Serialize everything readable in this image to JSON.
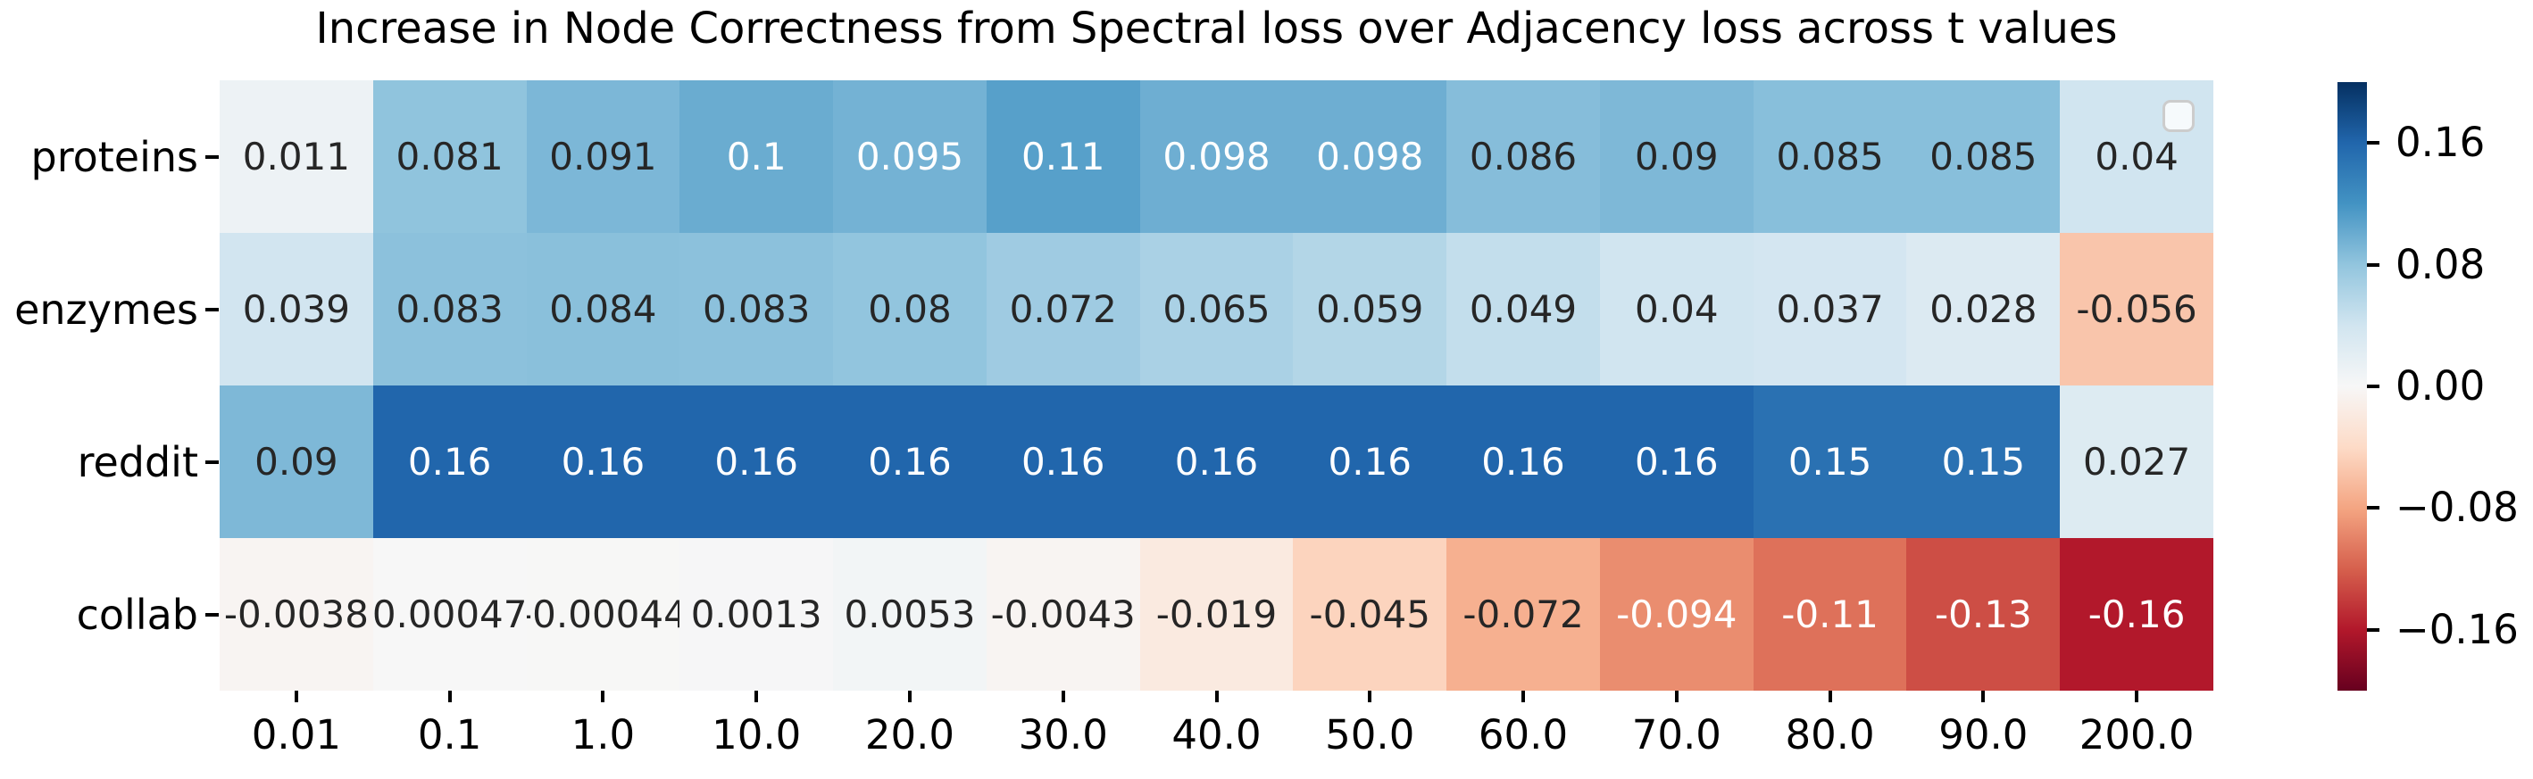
{
  "chart_data": {
    "type": "heatmap",
    "title": "Increase in Node Correctness from Spectral loss over Adjacency loss across t values",
    "rows": [
      "proteins",
      "enzymes",
      "reddit",
      "collab"
    ],
    "columns": [
      "0.01",
      "0.1",
      "1.0",
      "10.0",
      "20.0",
      "30.0",
      "40.0",
      "50.0",
      "60.0",
      "70.0",
      "80.0",
      "90.0",
      "200.0"
    ],
    "values": [
      [
        0.011,
        0.081,
        0.091,
        0.1,
        0.095,
        0.11,
        0.098,
        0.098,
        0.086,
        0.09,
        0.085,
        0.085,
        0.04
      ],
      [
        0.039,
        0.083,
        0.084,
        0.083,
        0.08,
        0.072,
        0.065,
        0.059,
        0.049,
        0.04,
        0.037,
        0.028,
        -0.056
      ],
      [
        0.09,
        0.16,
        0.16,
        0.16,
        0.16,
        0.16,
        0.16,
        0.16,
        0.16,
        0.16,
        0.15,
        0.15,
        0.027
      ],
      [
        -0.0038,
        0.00047,
        -0.00044,
        0.0013,
        0.0053,
        -0.0043,
        -0.019,
        -0.045,
        -0.072,
        -0.094,
        -0.11,
        -0.13,
        -0.16
      ]
    ],
    "cell_labels": [
      [
        "0.011",
        "0.081",
        "0.091",
        "0.1",
        "0.095",
        "0.11",
        "0.098",
        "0.098",
        "0.086",
        "0.09",
        "0.085",
        "0.085",
        "0.04"
      ],
      [
        "0.039",
        "0.083",
        "0.084",
        "0.083",
        "0.08",
        "0.072",
        "0.065",
        "0.059",
        "0.049",
        "0.04",
        "0.037",
        "0.028",
        "-0.056"
      ],
      [
        "0.09",
        "0.16",
        "0.16",
        "0.16",
        "0.16",
        "0.16",
        "0.16",
        "0.16",
        "0.16",
        "0.16",
        "0.15",
        "0.15",
        "0.027"
      ],
      [
        "-0.0038",
        "0.00047",
        "-0.00044",
        "0.0013",
        "0.0053",
        "-0.0043",
        "-0.019",
        "-0.045",
        "-0.072",
        "-0.094",
        "-0.11",
        "-0.13",
        "-0.16"
      ]
    ],
    "vmin": -0.2,
    "vmax": 0.2,
    "colormap": {
      "name": "RdBu",
      "stops": [
        "#67001f",
        "#b2182b",
        "#d6604d",
        "#f4a582",
        "#fddbc7",
        "#f7f7f7",
        "#d1e5f0",
        "#92c5de",
        "#4393c3",
        "#2166ac",
        "#053061"
      ]
    },
    "colorbar": {
      "ticks": [
        "0.16",
        "0.08",
        "0.00",
        "−0.08",
        "−0.16"
      ],
      "tick_values": [
        0.16,
        0.08,
        0.0,
        -0.08,
        -0.16
      ]
    },
    "legend": {
      "position": "upper-right",
      "items": []
    },
    "grid_lines": false,
    "annotation_colors": {
      "dark": "#262626",
      "light": "#ffffff"
    },
    "background_color": "#ffffff"
  }
}
